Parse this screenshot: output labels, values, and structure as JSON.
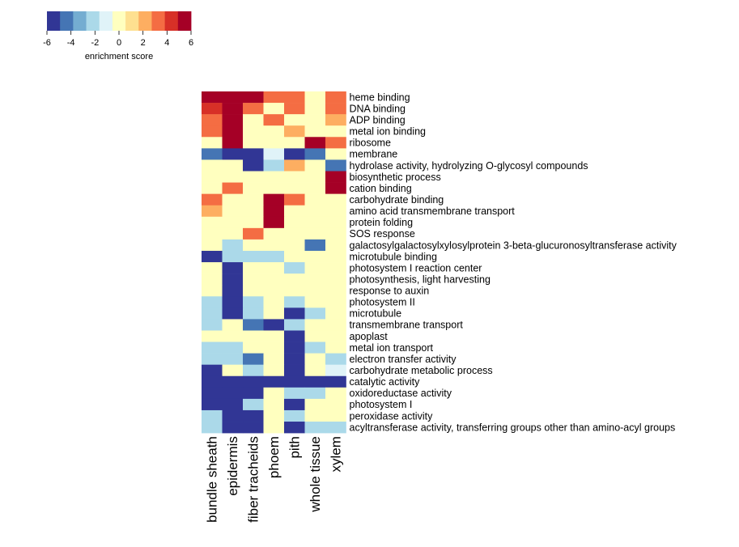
{
  "chart_data": {
    "type": "heatmap",
    "title": "",
    "legend": {
      "title": "enrichment score",
      "ticks": [
        -6,
        -4,
        -2,
        0,
        2,
        4,
        6
      ],
      "range": [
        -6,
        6
      ],
      "colors": [
        "#313695",
        "#4575b4",
        "#74add1",
        "#abd9e9",
        "#e0f3f8",
        "#ffffbf",
        "#fee090",
        "#fdae61",
        "#f46d43",
        "#d73027",
        "#a50026"
      ],
      "placement": "top-left"
    },
    "columns": [
      "bundle sheath",
      "epidermis",
      "fiber tracheids",
      "phoem",
      "pith",
      "whole tissue",
      "xylem"
    ],
    "rows": [
      "heme binding",
      "DNA binding",
      "ADP binding",
      "metal ion binding",
      "ribosome",
      "membrane",
      "hydrolase activity, hydrolyzing O-glycosyl compounds",
      "biosynthetic process",
      "cation binding",
      "carbohydrate binding",
      "amino acid transmembrane transport",
      "protein folding",
      "SOS response",
      "galactosylgalactosylxylosylprotein 3-beta-glucuronosyltransferase activity",
      "microtubule binding",
      "photosystem I reaction center",
      "photosynthesis, light harvesting",
      "response to auxin",
      "photosystem II",
      "microtubule",
      "transmembrane transport",
      "apoplast",
      "metal ion transport",
      "electron transfer activity",
      "carbohydrate metabolic process",
      "catalytic activity",
      "oxidoreductase activity",
      "photosystem I",
      "peroxidase activity",
      "acyltransferase activity, transferring groups other than amino-acyl groups"
    ],
    "values": [
      [
        6,
        6,
        6,
        4,
        4,
        0,
        4
      ],
      [
        5,
        6,
        4,
        0,
        4,
        0,
        4
      ],
      [
        4,
        6,
        0,
        3,
        0,
        0,
        2
      ],
      [
        3,
        6,
        0,
        0,
        2,
        0,
        0
      ],
      [
        0,
        6,
        0,
        0,
        0,
        6,
        3
      ],
      [
        -5,
        -6,
        -6,
        -1,
        -6,
        -5,
        0
      ],
      [
        0,
        0,
        -6,
        -2,
        2,
        0,
        -5
      ],
      [
        0,
        0,
        0,
        0,
        0,
        0,
        6
      ],
      [
        0,
        3,
        0,
        0,
        0,
        0,
        6
      ],
      [
        3,
        0,
        0,
        6,
        3,
        0,
        0
      ],
      [
        2,
        0,
        0,
        6,
        0,
        0,
        0
      ],
      [
        0,
        0,
        0,
        6,
        0,
        0,
        0
      ],
      [
        0,
        0,
        4,
        0,
        0,
        0,
        0
      ],
      [
        0,
        -3,
        0,
        0,
        0,
        -5,
        0
      ],
      [
        -6,
        -2,
        -2,
        -3,
        0,
        0,
        0
      ],
      [
        0,
        -6,
        0,
        0,
        -2,
        0,
        0
      ],
      [
        0,
        -6,
        0,
        0,
        0,
        0,
        0
      ],
      [
        0,
        -6,
        0,
        0,
        0,
        0,
        0
      ],
      [
        -3,
        -6,
        -2,
        0,
        -3,
        0,
        0
      ],
      [
        -3,
        -6,
        -2,
        0,
        -6,
        -3,
        0
      ],
      [
        -2,
        0,
        -5,
        -6,
        -2,
        0,
        0
      ],
      [
        0,
        0,
        0,
        0,
        -6,
        0,
        0
      ],
      [
        -2,
        -2,
        0,
        0,
        -6,
        -3,
        0
      ],
      [
        -3,
        -2,
        -5,
        0,
        -6,
        0,
        -3
      ],
      [
        -6,
        0,
        -3,
        0,
        -6,
        0,
        -1
      ],
      [
        -6,
        -6,
        -6,
        -6,
        -6,
        -6,
        -6
      ],
      [
        -6,
        -6,
        -6,
        0,
        -3,
        -2,
        0
      ],
      [
        -6,
        -6,
        -3,
        0,
        -6,
        0,
        0
      ],
      [
        -2,
        -6,
        -6,
        0,
        -2,
        0,
        0
      ],
      [
        -3,
        -6,
        -6,
        0,
        -6,
        -3,
        -2
      ]
    ]
  }
}
